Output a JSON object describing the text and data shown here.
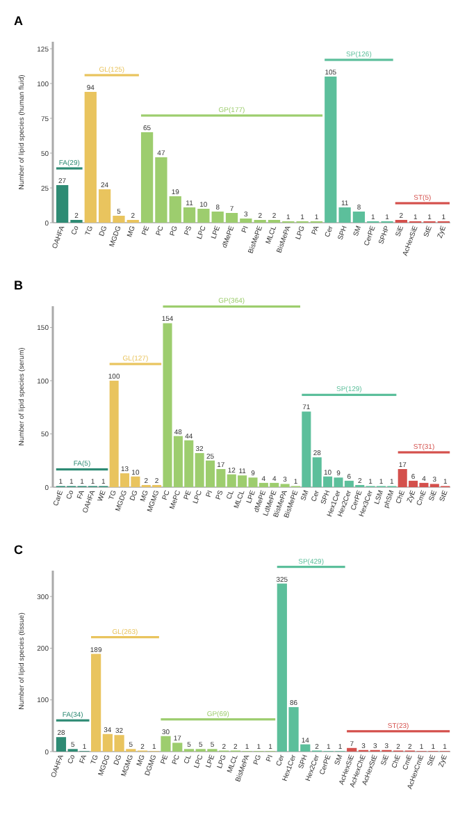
{
  "chart_data": [
    {
      "type": "bar",
      "title": "A",
      "ylabel": "Number of lipid species (human fluid)",
      "categories": [
        "OAHFA",
        "Co",
        "TG",
        "DG",
        "MGDG",
        "MG",
        "PE",
        "PC",
        "PG",
        "PS",
        "LPC",
        "LPE",
        "dMePE",
        "PI",
        "BisMePE",
        "MLCL",
        "BisMePA",
        "LPG",
        "PA",
        "Cer",
        "SPH",
        "SM",
        "CerPE",
        "SPHP",
        "SiE",
        "AcHexSiE",
        "StE",
        "ZyE"
      ],
      "ylim": [
        0,
        130
      ],
      "yticks": [
        0,
        25,
        50,
        75,
        100,
        125
      ],
      "data_labels": true,
      "grid": false,
      "series": [
        {
          "name": "FA(29)",
          "color": "#2e8b74",
          "values": [
            27,
            2,
            null,
            null,
            null,
            null,
            null,
            null,
            null,
            null,
            null,
            null,
            null,
            null,
            null,
            null,
            null,
            null,
            null,
            null,
            null,
            null,
            null,
            null,
            null,
            null,
            null,
            null
          ]
        },
        {
          "name": "GL(125)",
          "color": "#e9c45e",
          "values": [
            null,
            null,
            94,
            24,
            5,
            2,
            null,
            null,
            null,
            null,
            null,
            null,
            null,
            null,
            null,
            null,
            null,
            null,
            null,
            null,
            null,
            null,
            null,
            null,
            null,
            null,
            null,
            null
          ]
        },
        {
          "name": "GP(177)",
          "color": "#9dcd6e",
          "values": [
            null,
            null,
            null,
            null,
            null,
            null,
            65,
            47,
            19,
            11,
            10,
            8,
            7,
            3,
            2,
            2,
            1,
            1,
            1,
            null,
            null,
            null,
            null,
            null,
            null,
            null,
            null,
            null
          ]
        },
        {
          "name": "SP(126)",
          "color": "#5cbf9b",
          "values": [
            null,
            null,
            null,
            null,
            null,
            null,
            null,
            null,
            null,
            null,
            null,
            null,
            null,
            null,
            null,
            null,
            null,
            null,
            null,
            105,
            11,
            8,
            1,
            1,
            null,
            null,
            null,
            null
          ]
        },
        {
          "name": "ST(5)",
          "color": "#d4504c",
          "values": [
            null,
            null,
            null,
            null,
            null,
            null,
            null,
            null,
            null,
            null,
            null,
            null,
            null,
            null,
            null,
            null,
            null,
            null,
            null,
            null,
            null,
            null,
            null,
            null,
            2,
            1,
            1,
            1
          ]
        }
      ]
    },
    {
      "type": "bar",
      "title": "B",
      "ylabel": "Number of lipid species (serum)",
      "categories": [
        "CarE",
        "Co",
        "FA",
        "OAHFA",
        "WE",
        "TG",
        "MGDG",
        "DG",
        "MG",
        "MGMG",
        "PC",
        "MePC",
        "PE",
        "LPC",
        "PI",
        "PS",
        "CL",
        "MLCL",
        "LPE",
        "dMePE",
        "LdMePE",
        "BisMePA",
        "BisMePE",
        "SM",
        "Cer",
        "SPH",
        "Hex1Cer",
        "Hex2Cer",
        "CerPE",
        "Hex3Cer",
        "LSM",
        "phSM",
        "ChE",
        "ZyE",
        "CmE",
        "SiE",
        "StE"
      ],
      "ylim": [
        0,
        170
      ],
      "yticks": [
        0,
        50,
        100,
        150
      ],
      "data_labels": true,
      "grid": false,
      "series": [
        {
          "name": "FA(5)",
          "color": "#2e8b74",
          "values": [
            1,
            1,
            1,
            1,
            1,
            null,
            null,
            null,
            null,
            null,
            null,
            null,
            null,
            null,
            null,
            null,
            null,
            null,
            null,
            null,
            null,
            null,
            null,
            null,
            null,
            null,
            null,
            null,
            null,
            null,
            null,
            null,
            null,
            null,
            null,
            null,
            null
          ]
        },
        {
          "name": "GL(127)",
          "color": "#e9c45e",
          "values": [
            null,
            null,
            null,
            null,
            null,
            100,
            13,
            10,
            2,
            2,
            null,
            null,
            null,
            null,
            null,
            null,
            null,
            null,
            null,
            null,
            null,
            null,
            null,
            null,
            null,
            null,
            null,
            null,
            null,
            null,
            null,
            null,
            null,
            null,
            null,
            null,
            null
          ]
        },
        {
          "name": "GP(364)",
          "color": "#9dcd6e",
          "values": [
            null,
            null,
            null,
            null,
            null,
            null,
            null,
            null,
            null,
            null,
            154,
            48,
            44,
            32,
            25,
            17,
            12,
            11,
            9,
            4,
            4,
            3,
            1,
            null,
            null,
            null,
            null,
            null,
            null,
            null,
            null,
            null,
            null,
            null,
            null,
            null,
            null
          ]
        },
        {
          "name": "SP(129)",
          "color": "#5cbf9b",
          "values": [
            null,
            null,
            null,
            null,
            null,
            null,
            null,
            null,
            null,
            null,
            null,
            null,
            null,
            null,
            null,
            null,
            null,
            null,
            null,
            null,
            null,
            null,
            null,
            71,
            28,
            10,
            9,
            6,
            2,
            1,
            1,
            1,
            null,
            null,
            null,
            null,
            null
          ]
        },
        {
          "name": "ST(31)",
          "color": "#d4504c",
          "values": [
            null,
            null,
            null,
            null,
            null,
            null,
            null,
            null,
            null,
            null,
            null,
            null,
            null,
            null,
            null,
            null,
            null,
            null,
            null,
            null,
            null,
            null,
            null,
            null,
            null,
            null,
            null,
            null,
            null,
            null,
            null,
            null,
            17,
            6,
            4,
            3,
            1
          ]
        }
      ]
    },
    {
      "type": "bar",
      "title": "C",
      "ylabel": "Number of lipid species (tissue)",
      "categories": [
        "OAHFA",
        "Co",
        "FA",
        "TG",
        "MGDG",
        "DG",
        "MGMG",
        "MG",
        "DGMG",
        "PE",
        "PC",
        "CL",
        "LPC",
        "LPE",
        "LPG",
        "MLCL",
        "BisMePA",
        "PG",
        "PI",
        "Cer",
        "Hex1Cer",
        "SPH",
        "Hex2Cer",
        "CerPE",
        "SM",
        "AcHexSiE",
        "AcHexChE",
        "AcHexStE",
        "SiE",
        "ChE",
        "CmE",
        "AcHexCmE",
        "StE",
        "ZyE"
      ],
      "ylim": [
        0,
        350
      ],
      "yticks": [
        0,
        100,
        200,
        300
      ],
      "data_labels": true,
      "grid": false,
      "series": [
        {
          "name": "FA(34)",
          "color": "#2e8b74",
          "values": [
            28,
            5,
            1,
            null,
            null,
            null,
            null,
            null,
            null,
            null,
            null,
            null,
            null,
            null,
            null,
            null,
            null,
            null,
            null,
            null,
            null,
            null,
            null,
            null,
            null,
            null,
            null,
            null,
            null,
            null,
            null,
            null,
            null,
            null
          ]
        },
        {
          "name": "GL(263)",
          "color": "#e9c45e",
          "values": [
            null,
            null,
            null,
            189,
            34,
            32,
            5,
            2,
            1,
            null,
            null,
            null,
            null,
            null,
            null,
            null,
            null,
            null,
            null,
            null,
            null,
            null,
            null,
            null,
            null,
            null,
            null,
            null,
            null,
            null,
            null,
            null,
            null,
            null
          ]
        },
        {
          "name": "GP(69)",
          "color": "#9dcd6e",
          "values": [
            null,
            null,
            null,
            null,
            null,
            null,
            null,
            null,
            null,
            30,
            17,
            5,
            5,
            5,
            2,
            2,
            1,
            1,
            1,
            null,
            null,
            null,
            null,
            null,
            null,
            null,
            null,
            null,
            null,
            null,
            null,
            null,
            null,
            null
          ]
        },
        {
          "name": "SP(429)",
          "color": "#5cbf9b",
          "values": [
            null,
            null,
            null,
            null,
            null,
            null,
            null,
            null,
            null,
            null,
            null,
            null,
            null,
            null,
            null,
            null,
            null,
            null,
            null,
            325,
            86,
            14,
            2,
            1,
            1,
            null,
            null,
            null,
            null,
            null,
            null,
            null,
            null,
            null
          ]
        },
        {
          "name": "ST(23)",
          "color": "#d4504c",
          "values": [
            null,
            null,
            null,
            null,
            null,
            null,
            null,
            null,
            null,
            null,
            null,
            null,
            null,
            null,
            null,
            null,
            null,
            null,
            null,
            null,
            null,
            null,
            null,
            null,
            null,
            7,
            3,
            3,
            3,
            2,
            2,
            1,
            1,
            1
          ]
        }
      ]
    }
  ]
}
